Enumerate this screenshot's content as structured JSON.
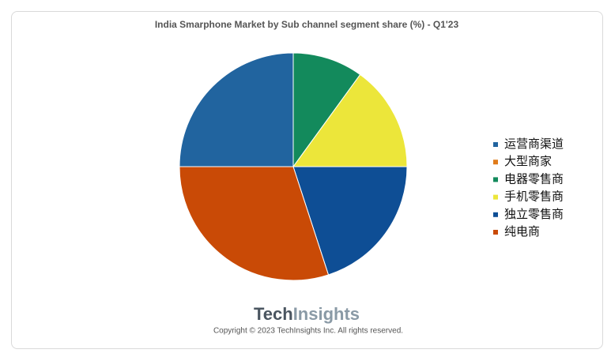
{
  "chart_data": {
    "type": "pie",
    "title": "India Smarphone Market by Sub channel segment share (%) - Q1'23",
    "categories": [
      "运营商渠道",
      "大型商家",
      "电器零售商",
      "手机零售商",
      "独立零售商",
      "纯电商"
    ],
    "values": [
      25,
      0,
      10,
      15,
      20,
      30
    ],
    "colors": [
      "#21649f",
      "#e07b1a",
      "#138a5c",
      "#ece63a",
      "#0e4e95",
      "#c94a06"
    ],
    "logo": {
      "brand": "Tech",
      "suffix": "Insights"
    },
    "copyright": "Copyright © 2023 TechInsights Inc.  All rights reserved."
  }
}
